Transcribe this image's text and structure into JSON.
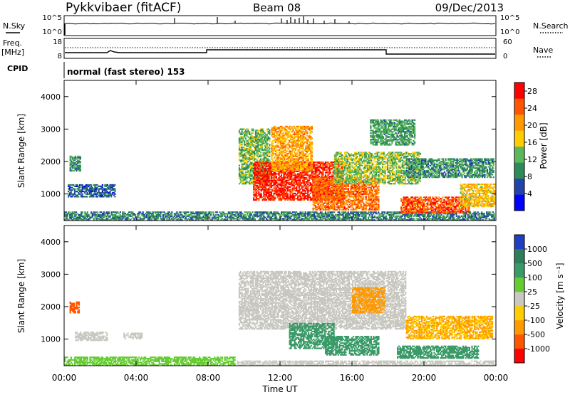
{
  "header": {
    "radar": "Pykkvibaer (fitACF)",
    "beam": "Beam 08",
    "date": "09/Dec/2013"
  },
  "noise_panel": {
    "left_label": "N.Sky",
    "right_label": "N.Search",
    "ticks": [
      "10^5",
      "10^0"
    ]
  },
  "freq_panel": {
    "left_label_1": "Freq.",
    "left_label_2": "[MHz]",
    "left_ticks": [
      "18",
      "8"
    ],
    "right_label": "Nave",
    "right_ticks": [
      "60",
      "0"
    ]
  },
  "cpid": {
    "label": "CPID",
    "mode": "normal (fast stereo) 153"
  },
  "colors": {
    "power_scale": [
      "#0000ff",
      "#2244aa",
      "#2e8b57",
      "#5cb85c",
      "#ffcc00",
      "#ff9900",
      "#ff5500",
      "#ff0000"
    ],
    "velocity_scale": [
      "#1f3fbf",
      "#2e7d5b",
      "#3a9a68",
      "#66cc33",
      "#c8c8c0",
      "#ffcc00",
      "#ff9900",
      "#ff5500",
      "#ff0000"
    ]
  },
  "chart_data": [
    {
      "type": "heatmap",
      "name": "power",
      "ylabel": "Slant Range [km]",
      "y_ticks": [
        "4000",
        "3000",
        "2000",
        "1000"
      ],
      "ylim": [
        180,
        4500
      ],
      "colorbar_label": "Power [dB]",
      "colorbar_ticks": [
        "28",
        "24",
        "20",
        "16",
        "12",
        "8",
        "4"
      ],
      "colorbar_range": [
        0,
        30
      ],
      "regions": [
        {
          "t0": 0.0,
          "t1": 23.9,
          "r0": 180,
          "r1": 450,
          "v": 9
        },
        {
          "t0": 0.2,
          "t1": 2.8,
          "r0": 900,
          "r1": 1300,
          "v": 7
        },
        {
          "t0": 0.3,
          "t1": 0.9,
          "r0": 1700,
          "r1": 2150,
          "v": 10
        },
        {
          "t0": 9.7,
          "t1": 11.4,
          "r0": 1300,
          "r1": 3000,
          "v": 13
        },
        {
          "t0": 10.5,
          "t1": 15.5,
          "r0": 800,
          "r1": 2000,
          "v": 27
        },
        {
          "t0": 11.5,
          "t1": 13.8,
          "r0": 1700,
          "r1": 3100,
          "v": 20
        },
        {
          "t0": 13.8,
          "t1": 17.5,
          "r0": 500,
          "r1": 1500,
          "v": 23
        },
        {
          "t0": 15.0,
          "t1": 19.8,
          "r0": 1300,
          "r1": 2300,
          "v": 14
        },
        {
          "t0": 17.0,
          "t1": 19.5,
          "r0": 2500,
          "r1": 3300,
          "v": 11
        },
        {
          "t0": 19.0,
          "t1": 23.9,
          "r0": 1500,
          "r1": 2100,
          "v": 10
        },
        {
          "t0": 18.7,
          "t1": 22.5,
          "r0": 400,
          "r1": 900,
          "v": 25
        },
        {
          "t0": 22.0,
          "t1": 23.9,
          "r0": 600,
          "r1": 1300,
          "v": 18
        }
      ]
    },
    {
      "type": "heatmap",
      "name": "velocity",
      "xlabel": "Time UT",
      "x_ticks": [
        "00:00",
        "04:00",
        "08:00",
        "12:00",
        "16:00",
        "20:00",
        "00:00"
      ],
      "xlim": [
        0,
        24
      ],
      "ylabel": "Slant Range [km]",
      "y_ticks": [
        "4000",
        "3000",
        "2000",
        "1000"
      ],
      "ylim": [
        180,
        4500
      ],
      "colorbar_label": "Velocity [m s⁻¹]",
      "colorbar_ticks": [
        "1000",
        "500",
        "100",
        "25",
        "-25",
        "-100",
        "-500",
        "-1000"
      ],
      "regions": [
        {
          "t0": 0.0,
          "t1": 9.5,
          "r0": 180,
          "r1": 450,
          "v": 60
        },
        {
          "t0": 0.6,
          "t1": 2.4,
          "r0": 950,
          "r1": 1200,
          "v": 0
        },
        {
          "t0": 0.3,
          "t1": 0.8,
          "r0": 1800,
          "r1": 2150,
          "v": -900
        },
        {
          "t0": 3.3,
          "t1": 4.3,
          "r0": 1000,
          "r1": 1200,
          "v": 0
        },
        {
          "t0": 9.6,
          "t1": 24.0,
          "r0": 180,
          "r1": 320,
          "v": 0
        },
        {
          "t0": 9.7,
          "t1": 19.0,
          "r0": 1300,
          "r1": 3100,
          "v": 0
        },
        {
          "t0": 12.5,
          "t1": 15.0,
          "r0": 700,
          "r1": 1500,
          "v": 200
        },
        {
          "t0": 14.5,
          "t1": 17.5,
          "r0": 500,
          "r1": 1100,
          "v": 300
        },
        {
          "t0": 18.5,
          "t1": 23.0,
          "r0": 400,
          "r1": 800,
          "v": 250
        },
        {
          "t0": 19.0,
          "t1": 23.8,
          "r0": 1000,
          "r1": 1700,
          "v": -100
        },
        {
          "t0": 16.0,
          "t1": 17.8,
          "r0": 1800,
          "r1": 2600,
          "v": -200
        }
      ]
    }
  ]
}
